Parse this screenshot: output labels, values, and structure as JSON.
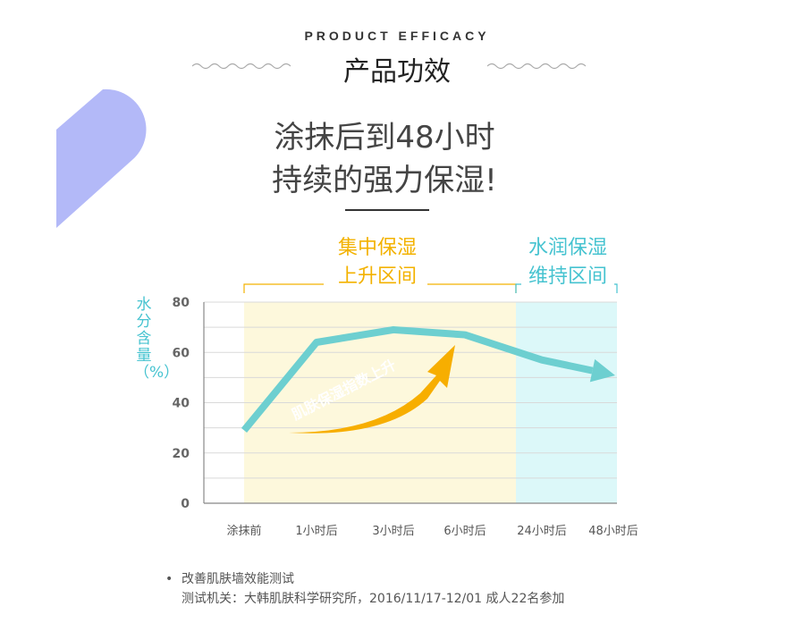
{
  "header": {
    "eyebrow": "PRODUCT EFFICACY",
    "title": "产品功效"
  },
  "headline": {
    "line1": "涂抹后到48小时",
    "line2": "持续的强力保湿!"
  },
  "zones": {
    "rise": {
      "line1": "集中保湿",
      "line2": "上升区间",
      "color": "#f3b200",
      "fill": "#fdf8dc"
    },
    "maintain": {
      "line1": "水润保湿",
      "line2": "维持区间",
      "color": "#46c3d0",
      "fill": "#dcf8f9"
    }
  },
  "chart_data": {
    "type": "line",
    "categories": [
      "涂抹前",
      "1小时后",
      "3小时后",
      "6小时后",
      "24小时后",
      "48小时后"
    ],
    "series": [
      {
        "values": [
          29,
          64,
          69,
          67,
          57,
          51
        ],
        "color": "#6dcfd0"
      }
    ],
    "ylabel": "水分含量（%）",
    "yticks": [
      0,
      20,
      40,
      60,
      80
    ],
    "ylim": [
      0,
      80
    ],
    "annotation": "肌肤保湿指数上升",
    "grid": true
  },
  "footnote": {
    "bullet": "•",
    "line1": "改善肌肤墙效能测试",
    "line2": "测试机关：大韩肌肤科学研究所，2016/11/17-12/01 成人22名参加"
  },
  "colors": {
    "decoration": "#b3b9f8",
    "line": "#6dcfd0",
    "arrow": "#f7ae00"
  }
}
